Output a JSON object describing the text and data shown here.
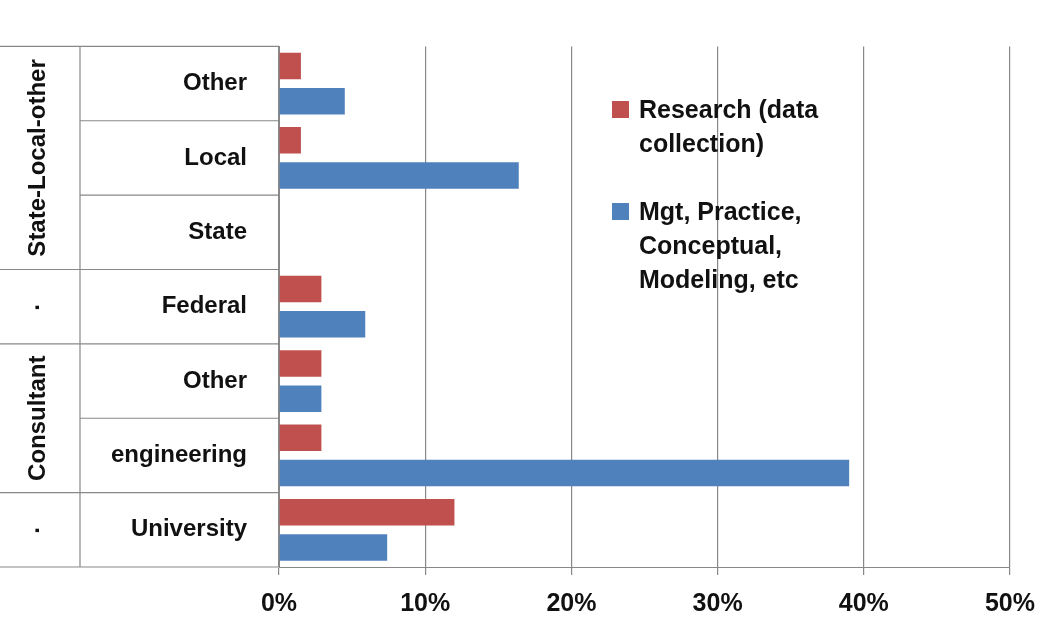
{
  "chart_data": {
    "type": "bar",
    "orientation": "horizontal",
    "categories": [
      "Other",
      "Local",
      "State",
      "Federal",
      "Other",
      "engineering",
      "University"
    ],
    "series": [
      {
        "name": "Research (data collection)",
        "color": "#c0504d",
        "values": [
          1.5,
          1.5,
          null,
          2.9,
          2.9,
          2.9,
          12.0
        ]
      },
      {
        "name": "Mgt, Practice, Conceptual, Modeling, etc",
        "color": "#4f81bd",
        "values": [
          4.5,
          16.4,
          null,
          5.9,
          2.9,
          39.0,
          7.4
        ]
      }
    ],
    "xlim": [
      0,
      50
    ],
    "xticks": [
      {
        "value": 0,
        "label": "0%"
      },
      {
        "value": 10,
        "label": "10%"
      },
      {
        "value": 20,
        "label": "20%"
      },
      {
        "value": 30,
        "label": "30%"
      },
      {
        "value": 40,
        "label": "40%"
      },
      {
        "value": 50,
        "label": "50%"
      }
    ],
    "annotations": [
      "State-Local-other",
      "·",
      "Consultant",
      "·"
    ],
    "grid": "x",
    "legend": "right"
  }
}
